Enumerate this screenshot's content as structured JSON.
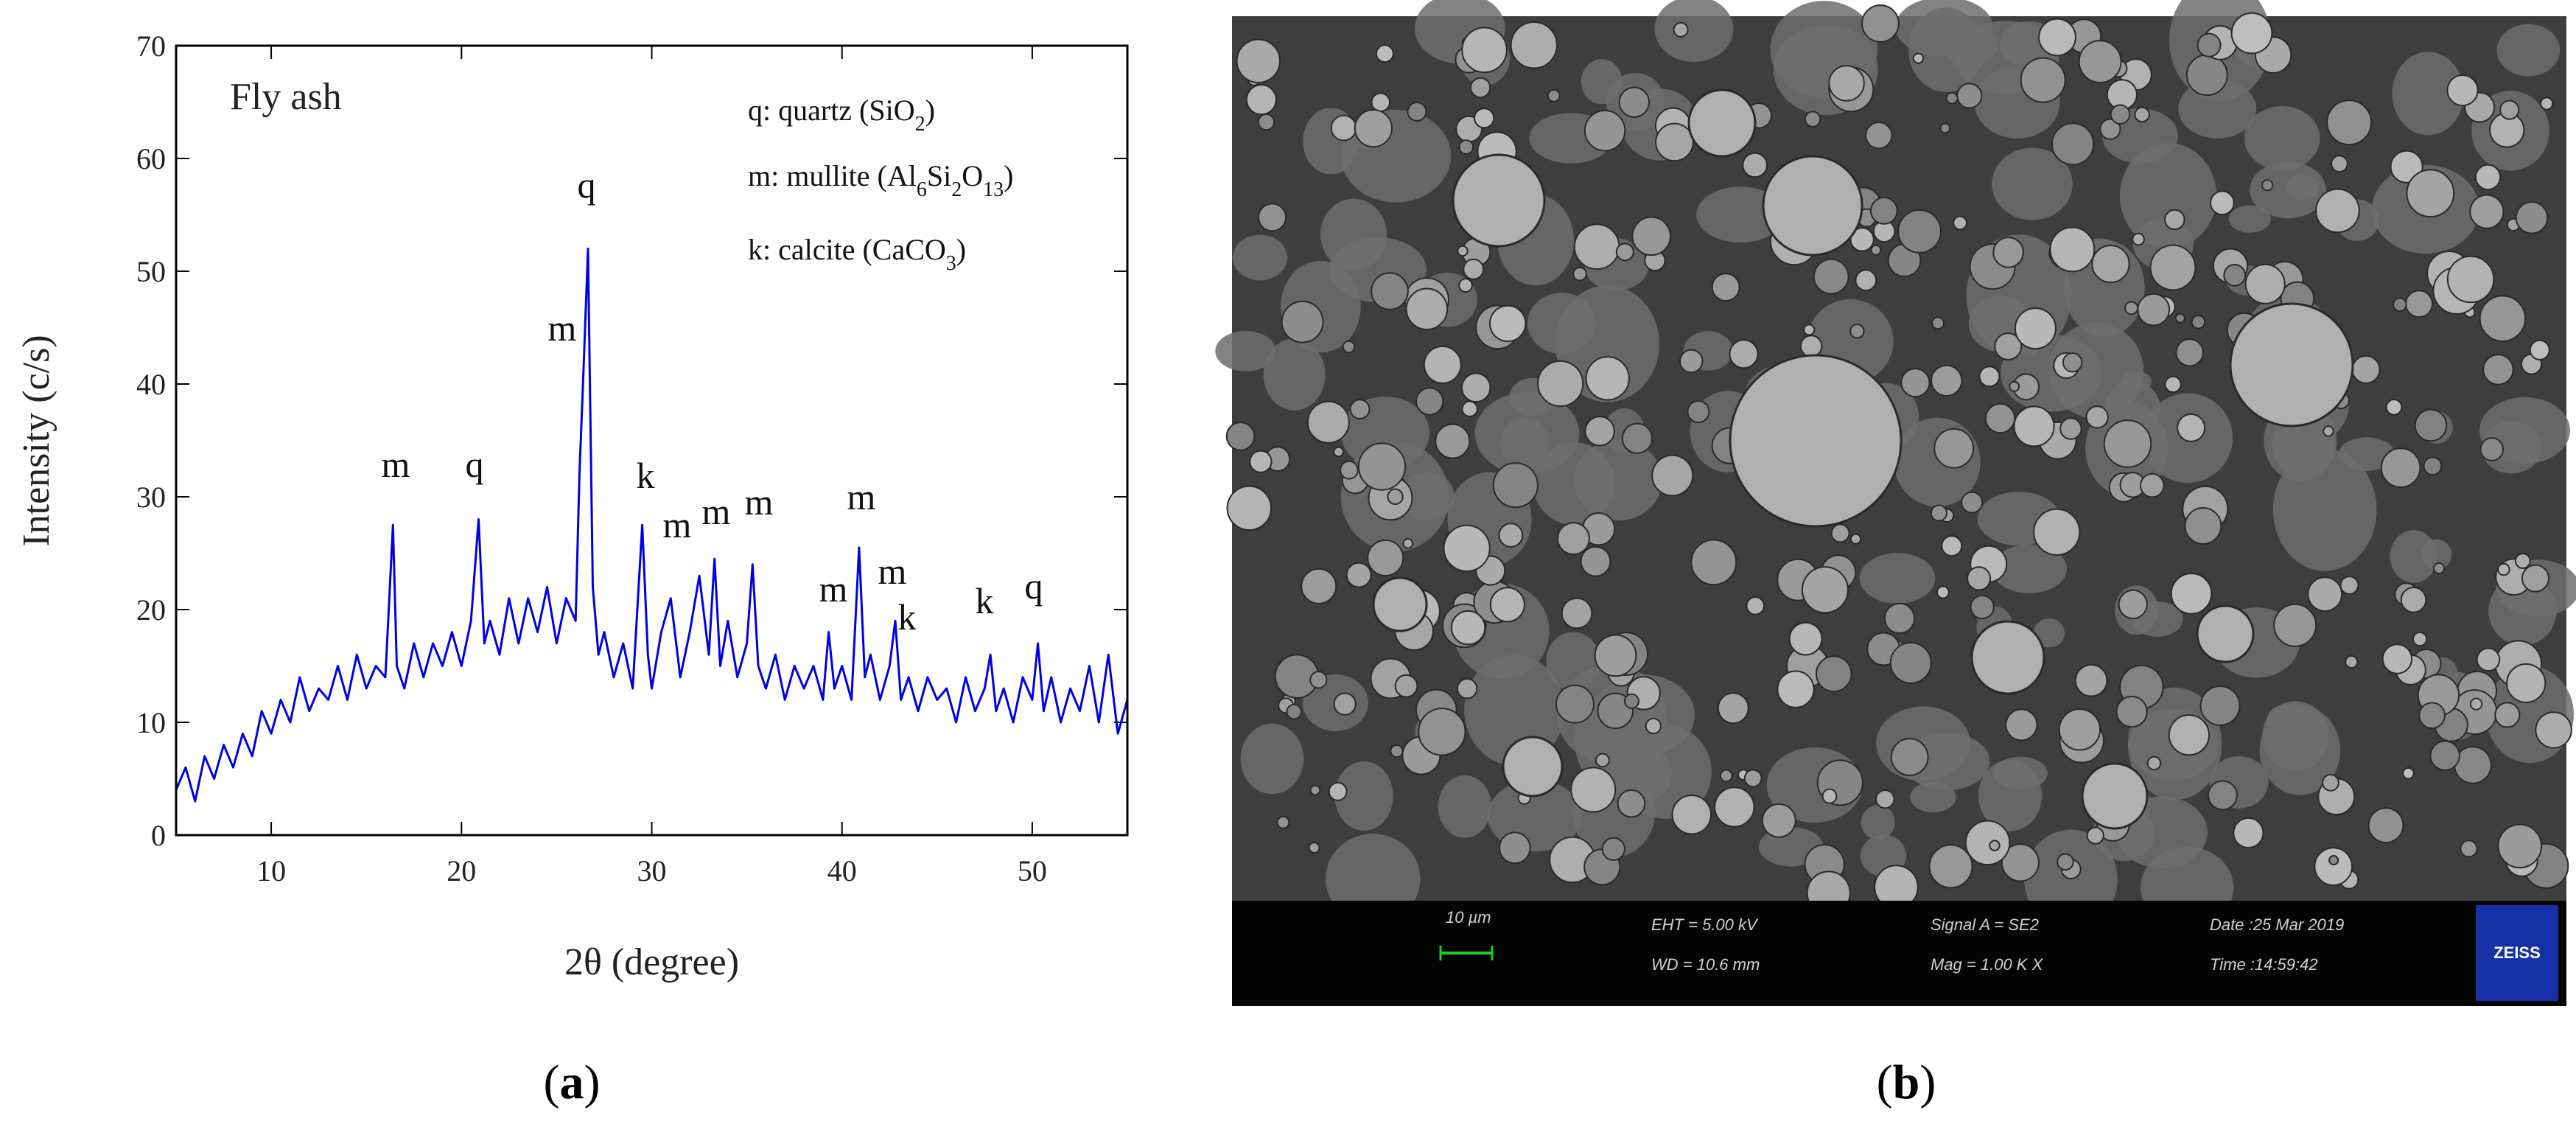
{
  "chart_data": {
    "type": "line",
    "annotation": "Fly ash",
    "x_label": "2θ (degree)",
    "y_label": "Intensity (c/s)",
    "color": "#0000e6",
    "xlim": [
      5,
      55
    ],
    "xticks": [
      10,
      20,
      30,
      40,
      50
    ],
    "ylim": [
      0,
      70
    ],
    "yticks": [
      0,
      10,
      20,
      30,
      40,
      50,
      60,
      70
    ],
    "x": [
      5,
      5.5,
      6,
      6.5,
      7,
      7.5,
      8,
      8.5,
      9,
      9.5,
      10,
      10.5,
      11,
      11.5,
      12,
      12.5,
      13,
      13.5,
      14,
      14.5,
      15,
      15.5,
      16,
      16.4,
      16.6,
      17,
      17.5,
      18,
      18.5,
      19,
      19.5,
      20,
      20.5,
      20.9,
      21.2,
      21.5,
      22,
      22.5,
      23,
      23.5,
      24,
      24.5,
      25,
      25.5,
      26,
      26.2,
      26.4,
      26.65,
      26.9,
      27.2,
      27.5,
      28,
      28.5,
      29,
      29.5,
      29.8,
      30,
      30.5,
      31,
      31.5,
      32,
      32.5,
      33,
      33.3,
      33.6,
      34,
      34.5,
      35,
      35.3,
      35.6,
      36,
      36.5,
      37,
      37.5,
      38,
      38.5,
      39,
      39.3,
      39.6,
      40,
      40.5,
      40.9,
      41.2,
      41.5,
      42,
      42.5,
      42.8,
      43.1,
      43.5,
      44,
      44.5,
      45,
      45.5,
      46,
      46.5,
      47,
      47.5,
      47.8,
      48.1,
      48.5,
      49,
      49.5,
      50,
      50.3,
      50.6,
      51,
      51.5,
      52,
      52.5,
      53,
      53.5,
      54,
      54.5,
      55
    ],
    "values": [
      4,
      6,
      3,
      7,
      5,
      8,
      6,
      9,
      7,
      11,
      9,
      12,
      10,
      14,
      11,
      13,
      12,
      15,
      12,
      16,
      13,
      15,
      14,
      27.5,
      15,
      13,
      17,
      14,
      17,
      15,
      18,
      15,
      19,
      28,
      17,
      19,
      16,
      21,
      17,
      21,
      18,
      22,
      17,
      21,
      19,
      32,
      40.5,
      52,
      22,
      16,
      18,
      14,
      17,
      13,
      27.5,
      16,
      13,
      18,
      21,
      14,
      18,
      23,
      16,
      24.5,
      15,
      19,
      14,
      17,
      24,
      15,
      13,
      16,
      12,
      15,
      13,
      15,
      12,
      18,
      13,
      15,
      12,
      25.5,
      14,
      16,
      12,
      15,
      19,
      12,
      14,
      11,
      14,
      12,
      13,
      10,
      14,
      11,
      13,
      16,
      11,
      13,
      10,
      14,
      12,
      17,
      11,
      14,
      10,
      13,
      11,
      15,
      10,
      16,
      9,
      12
    ],
    "peak_labels": [
      "m",
      "q",
      "m",
      "q",
      "k",
      "m",
      "m",
      "m",
      "m",
      "m",
      "m",
      "k",
      "k",
      "q"
    ],
    "legend": [
      [
        "q: quartz (SiO",
        "2",
        ")"
      ],
      [
        "m: mullite (Al",
        "6",
        "Si",
        "2",
        "O",
        "13",
        ")"
      ],
      [
        "k: calcite (CaCO",
        "3",
        ")"
      ]
    ],
    "panel_label": [
      "(",
      "a",
      ")"
    ]
  },
  "sem_image": {
    "scale_bar": "10 µm",
    "eht": "EHT = 5.00 kV",
    "wd": "WD = 10.6 mm",
    "signal": "Signal A = SE2",
    "mag": "Mag = 1.00 K X",
    "date": "Date :25 Mar 2019",
    "time": "Time :14:59:42",
    "logo": "ZEISS",
    "panel_label": [
      "(",
      "b",
      ")"
    ]
  }
}
